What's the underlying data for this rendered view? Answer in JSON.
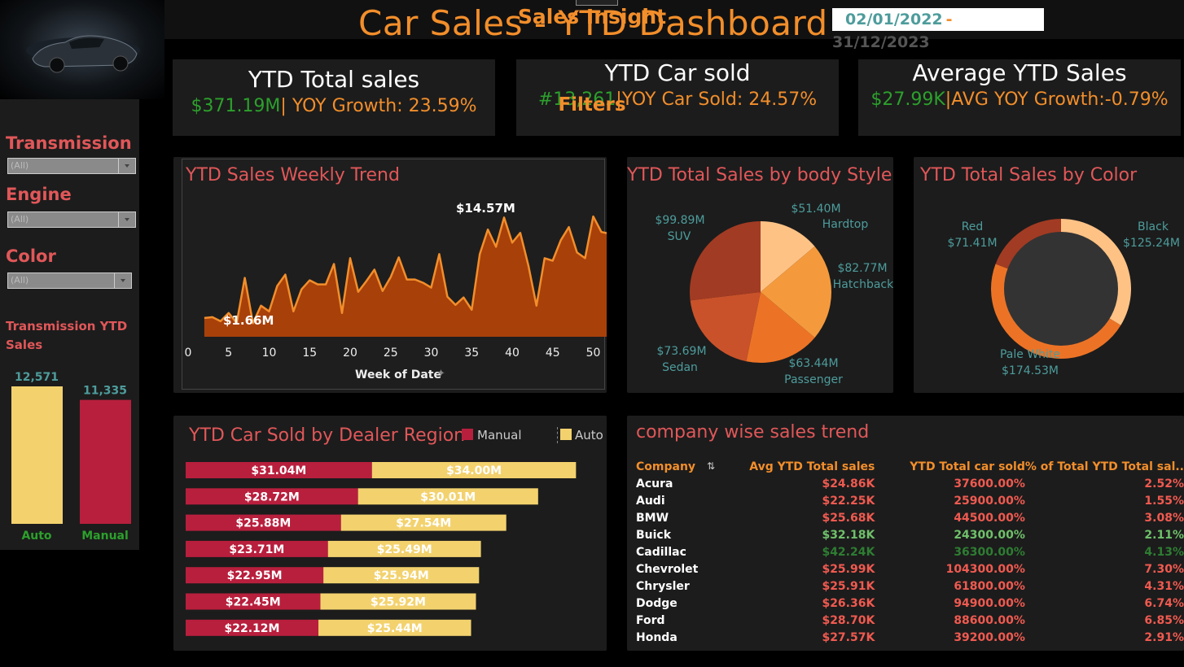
{
  "header": {
    "title": "Car Sales - YTD Dashboard",
    "date_from": "02/01/2022",
    "date_sep": "-",
    "date_to": "31/12/2023"
  },
  "kpis": [
    {
      "title": "YTD Total sales",
      "value": "$371.19M",
      "sep": "|",
      "growth": " YOY Growth: 23.59%"
    },
    {
      "title": "YTD Car sold",
      "value": "#13,261",
      "sep": "|",
      "growth": "YOY Car Sold: 24.57%"
    },
    {
      "title": "Average YTD Sales",
      "value": "$27.99K",
      "sep": "|",
      "growth": "AVG YOY Growth:-0.79%"
    }
  ],
  "sidebar": {
    "insight_title": "Sales Insight",
    "filters_title": "Filters",
    "filters": [
      {
        "label": "Transmission",
        "value": "(All)"
      },
      {
        "label": "Engine",
        "value": "(All)"
      },
      {
        "label": "Color",
        "value": "(All)"
      }
    ],
    "transmission_title": "Transmission YTD Sales"
  },
  "colors": {
    "orange": "#f28e2b",
    "red": "#e15759",
    "green": "#2ca02c",
    "manual": "#b81f3d",
    "auto": "#f3d26e",
    "teal": "#4e9c9c"
  },
  "chart_data": [
    {
      "type": "bar",
      "title": "Transmission YTD Sales",
      "categories": [
        "Auto",
        "Manual"
      ],
      "values": [
        12571,
        11335
      ],
      "value_labels": [
        "12,571",
        "11,335"
      ]
    },
    {
      "type": "area",
      "title": "YTD Sales Weekly Trend",
      "xlabel": "Week of Date",
      "xlim": [
        0,
        52
      ],
      "xticks": [
        0,
        5,
        10,
        15,
        20,
        25,
        30,
        35,
        40,
        45,
        50
      ],
      "ylim": [
        0,
        17
      ],
      "x": [
        2,
        3,
        4,
        5,
        6,
        7,
        8,
        9,
        10,
        11,
        12,
        13,
        14,
        15,
        16,
        17,
        18,
        19,
        20,
        21,
        22,
        23,
        24,
        25,
        26,
        27,
        28,
        29,
        30,
        31,
        32,
        33,
        34,
        35,
        36,
        37,
        38,
        39,
        40,
        41,
        42,
        43,
        44,
        45,
        46,
        47,
        48,
        49,
        50,
        51,
        52
      ],
      "y": [
        2.3,
        2.4,
        1.9,
        2.9,
        1.7,
        7.2,
        1.66,
        3.8,
        3.1,
        6.2,
        7.6,
        3.1,
        5.8,
        6.9,
        6.4,
        6.4,
        8.9,
        2.9,
        9.6,
        5.5,
        6.8,
        8.2,
        5.6,
        7.3,
        9.7,
        7.0,
        7.0,
        6.6,
        6.0,
        10.1,
        4.9,
        3.9,
        4.8,
        3.3,
        10.1,
        13.1,
        11.0,
        14.57,
        11.5,
        12.7,
        8.7,
        3.8,
        9.6,
        9.3,
        11.8,
        13.4,
        10.3,
        9.6,
        14.7,
        12.8,
        12.6
      ],
      "annotations": [
        {
          "x": 8,
          "label": "$1.66M"
        },
        {
          "x": 39,
          "label": "$14.57M"
        }
      ]
    },
    {
      "type": "pie",
      "title": "YTD Total Sales by body Style",
      "labels": [
        "Hardtop",
        "Hatchback",
        "Passenger",
        "Sedan",
        "SUV"
      ],
      "values": [
        51.4,
        82.77,
        63.44,
        73.69,
        99.89
      ],
      "value_labels": [
        "$51.40M",
        "$82.77M",
        "$63.44M",
        "$73.69M",
        "$99.89M"
      ],
      "colors": [
        "#ffc285",
        "#f49a3d",
        "#ec7326",
        "#c9522a",
        "#a23b23"
      ]
    },
    {
      "type": "pie",
      "title": "YTD Total Sales by Color",
      "labels": [
        "Black",
        "Pale White",
        "Red"
      ],
      "values": [
        125.24,
        174.53,
        71.41
      ],
      "value_labels": [
        "$125.24M",
        "$174.53M",
        "$71.41M"
      ],
      "colors": [
        "#ffc285",
        "#ec7326",
        "#a23b23"
      ]
    },
    {
      "type": "bar",
      "title": "YTD Car Sold by Dealer Region",
      "stacked": true,
      "orientation": "horizontal",
      "legend": "top-right",
      "series": [
        {
          "name": "Manual",
          "values": [
            31.04,
            28.72,
            25.88,
            23.71,
            22.95,
            22.45,
            22.12
          ],
          "labels": [
            "$31.04M",
            "$28.72M",
            "$25.88M",
            "$23.71M",
            "$22.95M",
            "$22.45M",
            "$22.12M"
          ]
        },
        {
          "name": "Auto",
          "values": [
            34.0,
            30.01,
            27.54,
            25.49,
            25.94,
            25.92,
            25.44
          ],
          "labels": [
            "$34.00M",
            "$30.01M",
            "$27.54M",
            "$25.49M",
            "$25.94M",
            "$25.92M",
            "$25.44M"
          ]
        }
      ]
    },
    {
      "type": "table",
      "title": "company wise sales trend",
      "columns": [
        "Company",
        "Avg YTD Total sales",
        "YTD Total car sold",
        "% of Total YTD Total sal.."
      ],
      "rows": [
        {
          "company": "Acura",
          "avg": "$24.86K",
          "sold": "37600.00%",
          "pct": "2.52%",
          "tone": "red"
        },
        {
          "company": "Audi",
          "avg": "$22.25K",
          "sold": "25900.00%",
          "pct": "1.55%",
          "tone": "red"
        },
        {
          "company": "BMW",
          "avg": "$25.68K",
          "sold": "44500.00%",
          "pct": "3.08%",
          "tone": "red"
        },
        {
          "company": "Buick",
          "avg": "$32.18K",
          "sold": "24300.00%",
          "pct": "2.11%",
          "tone": "lightgreen"
        },
        {
          "company": "Cadillac",
          "avg": "$42.24K",
          "sold": "36300.00%",
          "pct": "4.13%",
          "tone": "darkgreen"
        },
        {
          "company": "Chevrolet",
          "avg": "$25.99K",
          "sold": "104300.00%",
          "pct": "7.30%",
          "tone": "red"
        },
        {
          "company": "Chrysler",
          "avg": "$25.91K",
          "sold": "61800.00%",
          "pct": "4.31%",
          "tone": "red"
        },
        {
          "company": "Dodge",
          "avg": "$26.36K",
          "sold": "94900.00%",
          "pct": "6.74%",
          "tone": "red"
        },
        {
          "company": "Ford",
          "avg": "$28.70K",
          "sold": "88600.00%",
          "pct": "6.85%",
          "tone": "red"
        },
        {
          "company": "Honda",
          "avg": "$27.57K",
          "sold": "39200.00%",
          "pct": "2.91%",
          "tone": "red"
        }
      ]
    }
  ]
}
